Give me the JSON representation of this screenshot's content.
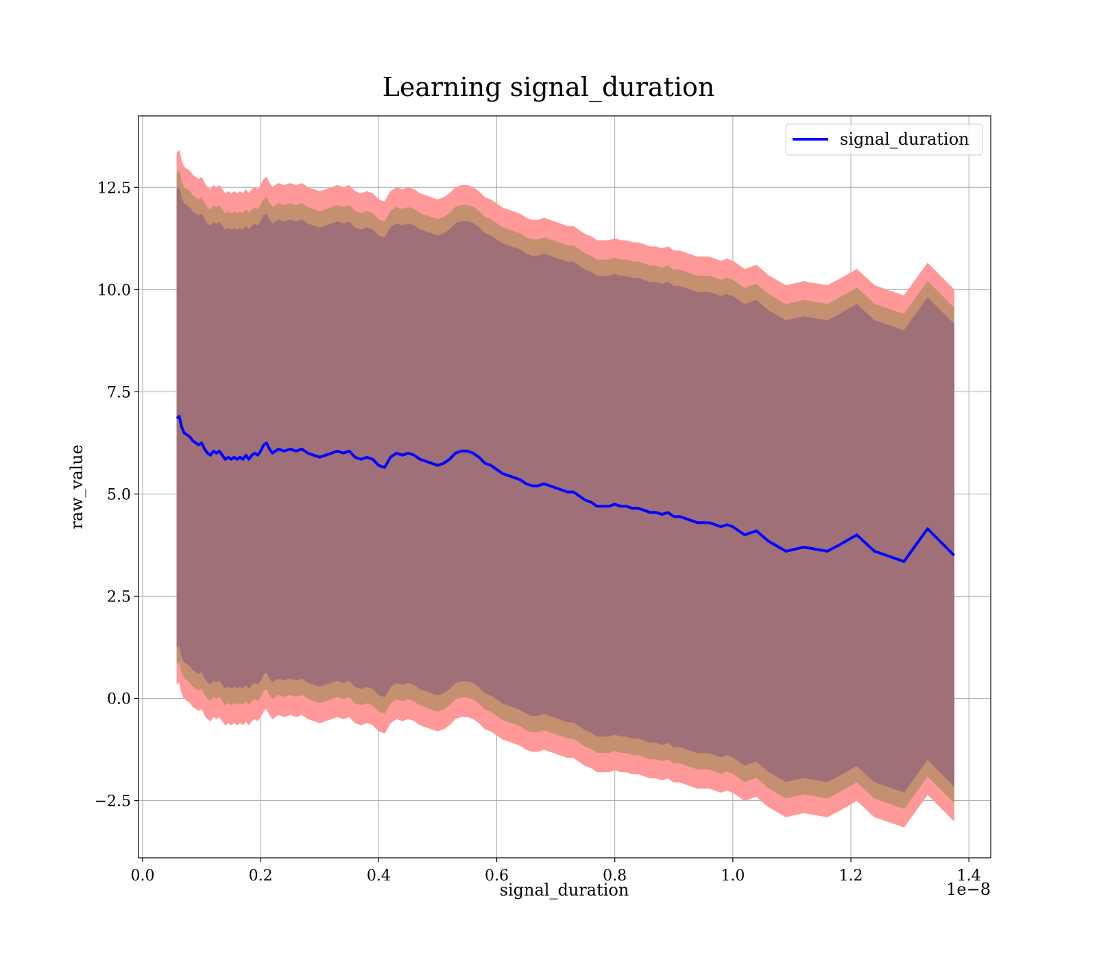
{
  "chart_data": {
    "type": "area",
    "title": "Learning signal_duration",
    "xlabel": "signal_duration",
    "ylabel": "raw_value",
    "x_offset_label": "1e−8",
    "xlim": [
      -0.007,
      1.437
    ],
    "ylim": [
      -3.9,
      14.25
    ],
    "x_ticks": [
      0.0,
      0.2,
      0.4,
      0.6,
      0.8,
      1.0,
      1.2,
      1.4
    ],
    "x_tick_labels": [
      "0.0",
      "0.2",
      "0.4",
      "0.6",
      "0.8",
      "1.0",
      "1.2",
      "1.4"
    ],
    "y_ticks": [
      -2.5,
      0.0,
      2.5,
      5.0,
      7.5,
      10.0,
      12.5
    ],
    "y_tick_labels": [
      "−2.5",
      "0.0",
      "2.5",
      "5.0",
      "7.5",
      "10.0",
      "12.5"
    ],
    "grid": true,
    "legend": {
      "position": "top-right",
      "entries": [
        "signal_duration"
      ]
    },
    "colors": {
      "line": "#0000ff",
      "outer_band": "#ff9999",
      "middle_band": "#c49070",
      "inner_band": "#a07078"
    },
    "bands": [
      {
        "label": "",
        "half_width_start": 6.5,
        "half_width_end": 6.5
      },
      {
        "label": "",
        "half_width_start": 6.0,
        "half_width_end": 6.05
      },
      {
        "label": "",
        "half_width_start": 5.6,
        "half_width_end": 5.65
      }
    ],
    "series": [
      {
        "name": "signal_duration",
        "x": [
          0.058,
          0.062,
          0.066,
          0.07,
          0.075,
          0.08,
          0.085,
          0.09,
          0.095,
          0.1,
          0.105,
          0.11,
          0.115,
          0.12,
          0.125,
          0.13,
          0.135,
          0.14,
          0.145,
          0.15,
          0.155,
          0.16,
          0.165,
          0.17,
          0.175,
          0.18,
          0.185,
          0.19,
          0.195,
          0.2,
          0.205,
          0.21,
          0.215,
          0.22,
          0.225,
          0.23,
          0.24,
          0.25,
          0.26,
          0.27,
          0.28,
          0.29,
          0.3,
          0.31,
          0.32,
          0.33,
          0.34,
          0.35,
          0.36,
          0.37,
          0.38,
          0.39,
          0.4,
          0.41,
          0.42,
          0.43,
          0.44,
          0.45,
          0.46,
          0.47,
          0.48,
          0.49,
          0.5,
          0.51,
          0.52,
          0.53,
          0.54,
          0.55,
          0.56,
          0.57,
          0.58,
          0.59,
          0.6,
          0.61,
          0.62,
          0.63,
          0.64,
          0.65,
          0.66,
          0.67,
          0.68,
          0.69,
          0.7,
          0.71,
          0.72,
          0.73,
          0.74,
          0.75,
          0.76,
          0.77,
          0.78,
          0.79,
          0.8,
          0.81,
          0.82,
          0.83,
          0.84,
          0.85,
          0.86,
          0.87,
          0.88,
          0.89,
          0.9,
          0.91,
          0.92,
          0.93,
          0.94,
          0.95,
          0.96,
          0.97,
          0.98,
          0.99,
          1.0,
          1.02,
          1.04,
          1.06,
          1.09,
          1.12,
          1.16,
          1.18,
          1.21,
          1.24,
          1.29,
          1.33,
          1.375
        ],
        "values": [
          6.85,
          6.9,
          6.65,
          6.5,
          6.45,
          6.4,
          6.3,
          6.25,
          6.2,
          6.25,
          6.1,
          6.0,
          5.95,
          6.05,
          6.0,
          6.05,
          5.95,
          5.85,
          5.9,
          5.85,
          5.9,
          5.85,
          5.9,
          5.85,
          5.95,
          5.85,
          5.95,
          6.0,
          5.95,
          6.05,
          6.2,
          6.25,
          6.1,
          6.0,
          6.05,
          6.1,
          6.05,
          6.1,
          6.05,
          6.1,
          6.0,
          5.95,
          5.9,
          5.95,
          6.0,
          6.05,
          6.0,
          6.05,
          5.9,
          5.85,
          5.9,
          5.85,
          5.7,
          5.65,
          5.9,
          6.0,
          5.95,
          6.0,
          5.95,
          5.85,
          5.8,
          5.75,
          5.7,
          5.75,
          5.85,
          6.0,
          6.05,
          6.05,
          6.0,
          5.9,
          5.75,
          5.7,
          5.6,
          5.5,
          5.45,
          5.4,
          5.35,
          5.25,
          5.2,
          5.2,
          5.25,
          5.2,
          5.15,
          5.1,
          5.05,
          5.05,
          4.95,
          4.85,
          4.8,
          4.7,
          4.7,
          4.7,
          4.75,
          4.7,
          4.7,
          4.65,
          4.65,
          4.6,
          4.55,
          4.55,
          4.5,
          4.55,
          4.45,
          4.45,
          4.4,
          4.35,
          4.3,
          4.3,
          4.3,
          4.25,
          4.2,
          4.25,
          4.2,
          4.0,
          4.1,
          3.85,
          3.6,
          3.7,
          3.6,
          3.75,
          4.0,
          3.6,
          3.35,
          4.15,
          3.5
        ]
      }
    ]
  }
}
